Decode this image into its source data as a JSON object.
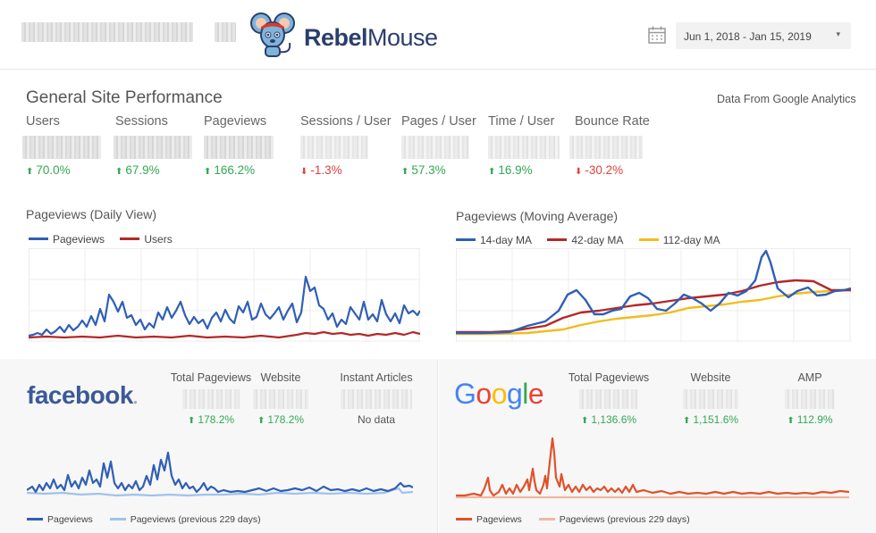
{
  "header": {
    "brand": "RebelMouse",
    "brand_part1": "Rebel",
    "brand_part2": "Mouse",
    "date_range": "Jun 1, 2018 - Jan 15, 2019",
    "icons": [
      "mouse-mascot-logo",
      "calendar-icon",
      "caret-down-icon"
    ]
  },
  "general": {
    "title": "General Site Performance",
    "source_note": "Data From Google Analytics",
    "metrics": [
      {
        "label": "Users",
        "delta": "70.0%",
        "dir": "up"
      },
      {
        "label": "Sessions",
        "delta": "67.9%",
        "dir": "up"
      },
      {
        "label": "Pageviews",
        "delta": "166.2%",
        "dir": "up"
      },
      {
        "label": "Sessions / User",
        "delta": "-1.3%",
        "dir": "down"
      },
      {
        "label": "Pages / User",
        "delta": "57.3%",
        "dir": "up"
      },
      {
        "label": "Time / User",
        "delta": "16.9%",
        "dir": "up"
      },
      {
        "label": "Bounce Rate",
        "delta": "-30.2%",
        "dir": "down"
      }
    ]
  },
  "daily_chart": {
    "title": "Pageviews (Daily View)",
    "legend": [
      {
        "name": "Pageviews",
        "color": "#2f5fb5"
      },
      {
        "name": "Users",
        "color": "#b42828"
      }
    ]
  },
  "ma_chart": {
    "title": "Pageviews (Moving Average)",
    "legend": [
      {
        "name": "14-day MA",
        "color": "#2f5fb5"
      },
      {
        "name": "42-day MA",
        "color": "#b42828"
      },
      {
        "name": "112-day MA",
        "color": "#f2bc1f"
      }
    ]
  },
  "facebook": {
    "brand": "facebook",
    "brand_dot": ".",
    "stats": [
      {
        "label": "Total Pageviews",
        "delta": "178.2%"
      },
      {
        "label": "Website",
        "delta": "178.2%"
      },
      {
        "label": "Instant Articles",
        "delta": "No data"
      }
    ],
    "legend": [
      {
        "name": "Pageviews",
        "color": "#2f5fb5"
      },
      {
        "name": "Pageviews (previous 229 days)",
        "color": "#9fc3ea"
      }
    ]
  },
  "google": {
    "brand_letters": [
      {
        "ch": "G",
        "color": "#4285f4"
      },
      {
        "ch": "o",
        "color": "#ea4335"
      },
      {
        "ch": "o",
        "color": "#fbbc05"
      },
      {
        "ch": "g",
        "color": "#4285f4"
      },
      {
        "ch": "l",
        "color": "#34a853"
      },
      {
        "ch": "e",
        "color": "#ea4335"
      }
    ],
    "stats": [
      {
        "label": "Total Pageviews",
        "delta": "1,136.6%"
      },
      {
        "label": "Website",
        "delta": "1,151.6%"
      },
      {
        "label": "AMP",
        "delta": "112.9%"
      }
    ],
    "legend": [
      {
        "name": "Pageviews",
        "color": "#e0522a"
      },
      {
        "name": "Pageviews (previous 229 days)",
        "color": "#f1b7a2"
      }
    ]
  }
}
